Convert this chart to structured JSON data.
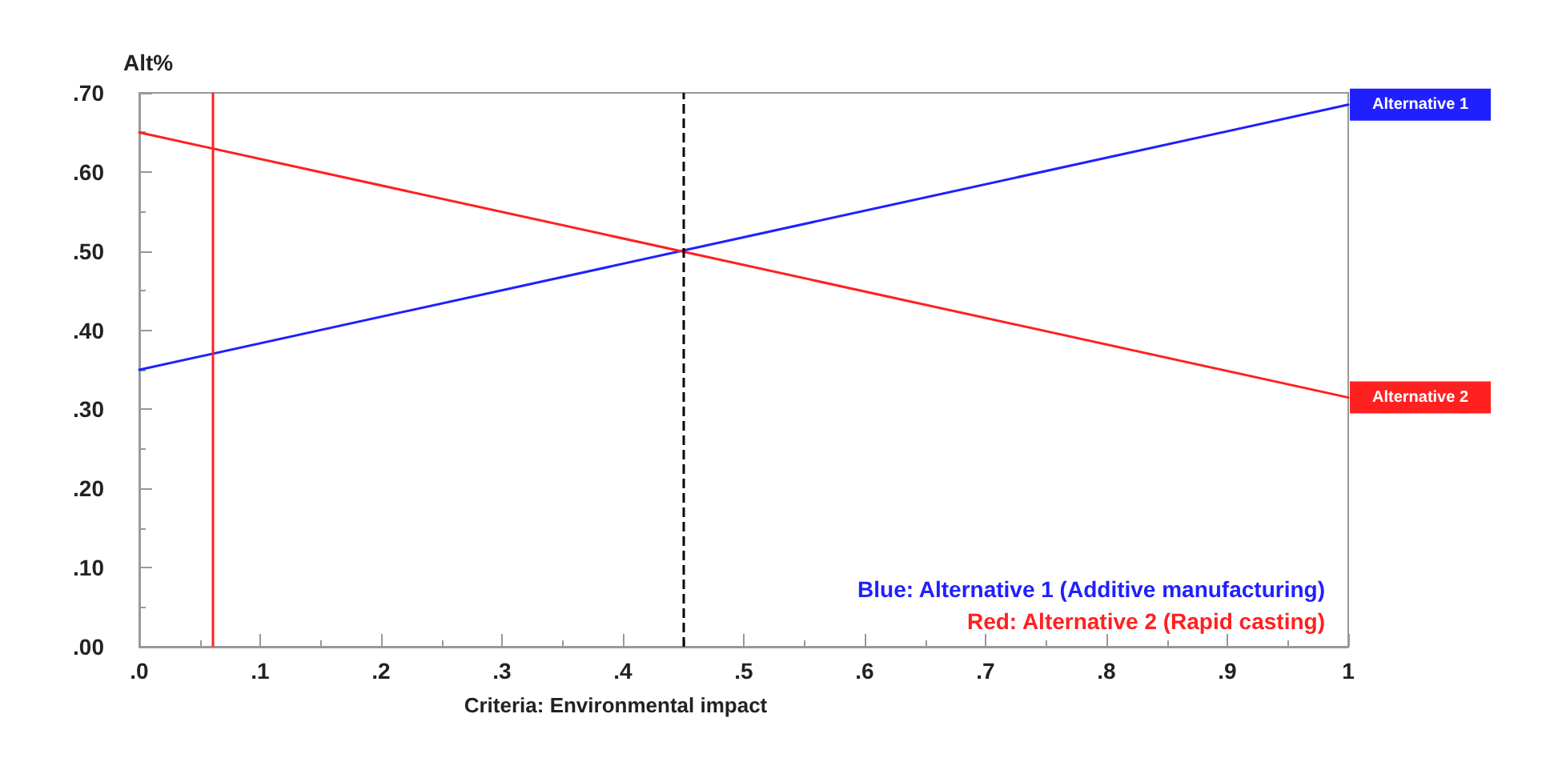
{
  "chart_data": {
    "type": "line",
    "xlabel": "Criteria: Environmental impact",
    "ylabel": "Alt%",
    "x": [
      0,
      1
    ],
    "series": [
      {
        "name": "Alternative 1",
        "color": "#2020ff",
        "values": [
          0.35,
          0.685
        ]
      },
      {
        "name": "Alternative 2",
        "color": "#ff2020",
        "values": [
          0.65,
          0.315
        ]
      }
    ],
    "xlim": [
      0,
      1
    ],
    "xticks": [
      {
        "value": 0,
        "label": ".0"
      },
      {
        "value": 0.1,
        "label": ".1"
      },
      {
        "value": 0.2,
        "label": ".2"
      },
      {
        "value": 0.3,
        "label": ".3"
      },
      {
        "value": 0.4,
        "label": ".4"
      },
      {
        "value": 0.5,
        "label": ".5"
      },
      {
        "value": 0.6,
        "label": ".6"
      },
      {
        "value": 0.7,
        "label": ".7"
      },
      {
        "value": 0.8,
        "label": ".8"
      },
      {
        "value": 0.9,
        "label": ".9"
      },
      1
    ],
    "ylim": [
      0,
      0.7
    ],
    "yticks": [
      {
        "value": 0,
        "label": ".00"
      },
      {
        "value": 0.1,
        "label": ".10"
      },
      {
        "value": 0.2,
        "label": ".20"
      },
      {
        "value": 0.3,
        "label": ".30"
      },
      {
        "value": 0.4,
        "label": ".40"
      },
      {
        "value": 0.5,
        "label": ".50"
      },
      {
        "value": 0.6,
        "label": ".60"
      },
      {
        "value": 0.7,
        "label": ".70"
      }
    ],
    "ref_lines": [
      {
        "axis": "x",
        "value": 0.06,
        "color": "#ff2020",
        "line_style": "solid"
      },
      {
        "axis": "x",
        "value": 0.45,
        "color": "#000000",
        "line_style": "dashed"
      }
    ],
    "annotations": [
      "Blue: Alternative 1 (Additive manufacturing)",
      "Red: Alternative 2 (Rapid casting)"
    ],
    "grid": false,
    "legend": false,
    "marker": "none",
    "line_style": "solid"
  }
}
